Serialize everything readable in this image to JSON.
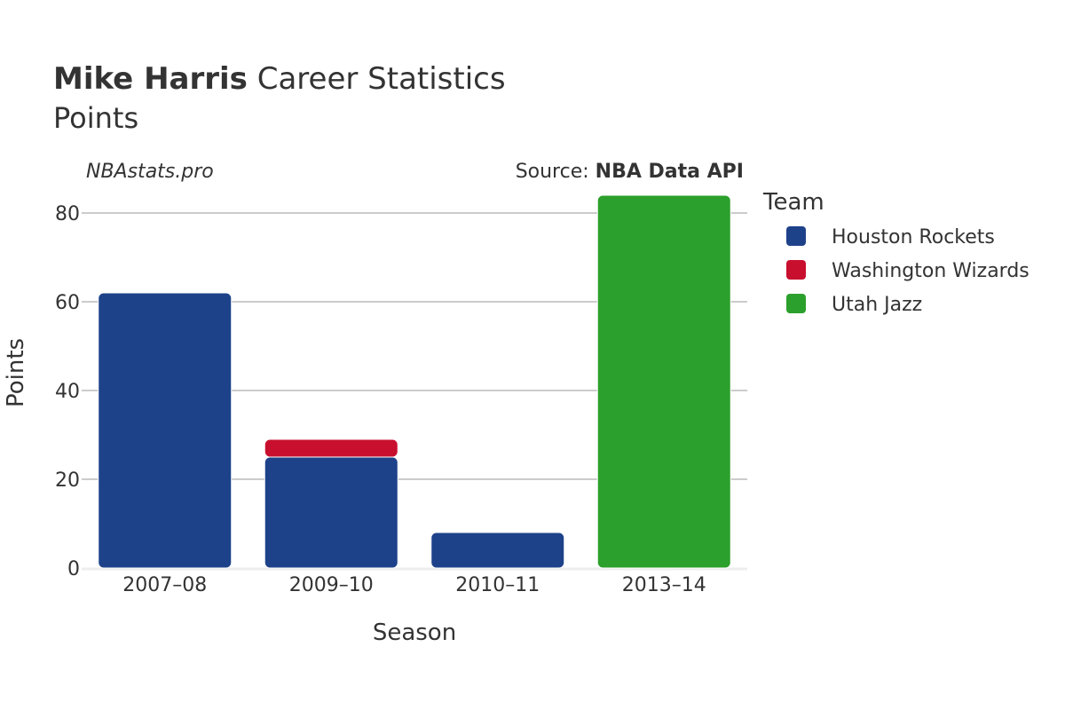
{
  "header": {
    "player_name": "Mike Harris",
    "title_rest": " Career Statistics",
    "subtitle": "Points"
  },
  "credits": {
    "site": "NBAstats.pro",
    "source_prefix": "Source: ",
    "source_name": "NBA Data API"
  },
  "colors": {
    "houston_rockets": "#1d428a",
    "washington_wizards": "#c8102e",
    "utah_jazz": "#2ca02c",
    "gridline": "#999999",
    "baseline": "#eeeeee"
  },
  "chart_data": {
    "type": "bar",
    "stacked": true,
    "title": "Mike Harris Career Statistics",
    "subtitle": "Points",
    "xlabel": "Season",
    "ylabel": "Points",
    "categories": [
      "2007–08",
      "2009–10",
      "2010–11",
      "2013–14"
    ],
    "ylim": [
      0,
      88
    ],
    "yticks": [
      0,
      20,
      40,
      60,
      80
    ],
    "grid": true,
    "legend_title": "Team",
    "legend_position": "right",
    "series": [
      {
        "name": "Houston Rockets",
        "color": "#1d428a",
        "values": [
          62,
          25,
          8,
          0
        ]
      },
      {
        "name": "Washington Wizards",
        "color": "#c8102e",
        "values": [
          0,
          4,
          0,
          0
        ]
      },
      {
        "name": "Utah Jazz",
        "color": "#2ca02c",
        "values": [
          0,
          0,
          0,
          84
        ]
      }
    ]
  }
}
